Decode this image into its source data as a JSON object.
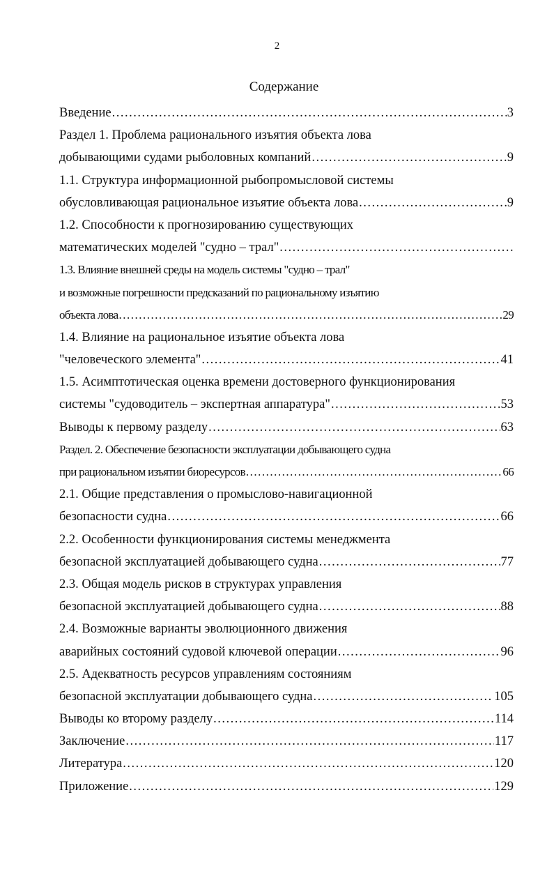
{
  "page_number": "2",
  "title": "Содержание",
  "lines": [
    {
      "text": "Введение",
      "leader": true,
      "page": "3",
      "condensed": false
    },
    {
      "text": "Раздел 1. Проблема рационального изъятия объекта лова",
      "leader": false,
      "page": "",
      "condensed": false
    },
    {
      "text": "добывающими судами рыболовных компаний",
      "leader": true,
      "page": "9",
      "condensed": false
    },
    {
      "text": "1.1. Структура информационной рыбопромысловой системы",
      "leader": false,
      "page": "",
      "condensed": false
    },
    {
      "text": "обусловливающая рациональное изъятие объекта лова",
      "leader": true,
      "page": "9",
      "condensed": false
    },
    {
      "text": "1.2. Способности к прогнозированию существующих",
      "leader": false,
      "page": "",
      "condensed": false
    },
    {
      "text": "математических моделей \"судно – трал\"",
      "leader": true,
      "page": "",
      "condensed": false
    },
    {
      "text": "1.3. Влияние внешней среды на модель системы \"судно – трал\"",
      "leader": false,
      "page": "",
      "condensed": true
    },
    {
      "text": "и возможные погрешности предсказаний по рациональному изъятию",
      "leader": false,
      "page": "",
      "condensed": true
    },
    {
      "text": "объекта лова",
      "leader": true,
      "page": "29",
      "condensed": true
    },
    {
      "text": "1.4. Влияние на рациональное изъятие объекта лова",
      "leader": false,
      "page": "",
      "condensed": false
    },
    {
      "text": "\"человеческого элемента\"",
      "leader": true,
      "page": "41",
      "condensed": false
    },
    {
      "text": "1.5. Асимптотическая оценка времени достоверного функционирования",
      "leader": false,
      "page": "",
      "condensed": false
    },
    {
      "text": "системы \"судоводитель – экспертная аппаратура\"",
      "leader": true,
      "page": "53",
      "condensed": false
    },
    {
      "text": "Выводы к первому разделу",
      "leader": true,
      "page": "63",
      "condensed": false
    },
    {
      "text": "Раздел. 2. Обеспечение безопасности эксплуатации добывающего судна",
      "leader": false,
      "page": "",
      "condensed": true
    },
    {
      "text": "при рациональном изъятии биоресурсов",
      "leader": true,
      "page": "66",
      "condensed": true
    },
    {
      "text": "2.1. Общие представления о промыслово-навигационной",
      "leader": false,
      "page": "",
      "condensed": false
    },
    {
      "text": "безопасности судна",
      "leader": true,
      "page": "66",
      "condensed": false
    },
    {
      "text": "2.2. Особенности функционирования системы менеджмента",
      "leader": false,
      "page": "",
      "condensed": false
    },
    {
      "text": "безопасной эксплуатацией добывающего судна",
      "leader": true,
      "page": "77",
      "condensed": false
    },
    {
      "text": "2.3. Общая модель рисков в структурах управления",
      "leader": false,
      "page": "",
      "condensed": false
    },
    {
      "text": "безопасной эксплуатацией добывающего судна",
      "leader": true,
      "page": "88",
      "condensed": false
    },
    {
      "text": "2.4. Возможные варианты эволюционного движения",
      "leader": false,
      "page": "",
      "condensed": false
    },
    {
      "text": "аварийных состояний судовой ключевой операции",
      "leader": true,
      "page": "96",
      "condensed": false
    },
    {
      "text": "2.5. Адекватность ресурсов управлениям состояниям",
      "leader": false,
      "page": "",
      "condensed": false
    },
    {
      "text": "безопасной эксплуатации  добывающего судна",
      "leader": true,
      "page": "105",
      "condensed": false
    },
    {
      "text": "Выводы ко второму разделу",
      "leader": true,
      "page": "114",
      "condensed": false
    },
    {
      "text": "Заключение",
      "leader": true,
      "page": "117",
      "condensed": false
    },
    {
      "text": "Литература",
      "leader": true,
      "page": "120",
      "condensed": false
    },
    {
      "text": "Приложение",
      "leader": true,
      "page": "129",
      "condensed": false
    }
  ]
}
